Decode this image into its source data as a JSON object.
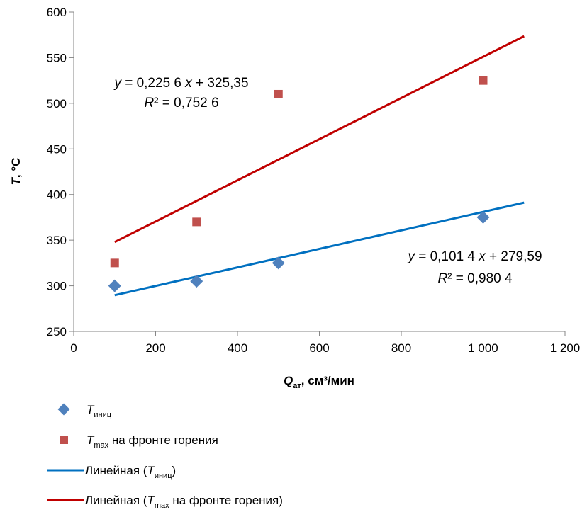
{
  "chart_data": {
    "type": "scatter",
    "xlabel": {
      "main": "Q",
      "sub": "ат",
      "rest": ", см³/мин"
    },
    "ylabel": {
      "main": "T",
      "rest": ", °C"
    },
    "xlim": [
      0,
      1200
    ],
    "ylim": [
      250,
      600
    ],
    "xticks": [
      0,
      200,
      400,
      600,
      800,
      1000,
      1200
    ],
    "xtick_labels": [
      "0",
      "200",
      "400",
      "600",
      "800",
      "1 000",
      "1 200"
    ],
    "yticks": [
      250,
      300,
      350,
      400,
      450,
      500,
      550,
      600
    ],
    "ytick_labels": [
      "250",
      "300",
      "350",
      "400",
      "450",
      "500",
      "550",
      "600"
    ],
    "grid": false,
    "legend_position": "bottom",
    "series": [
      {
        "key": "tinit",
        "marker": "diamond",
        "color": "#4f81bd",
        "x": [
          100,
          300,
          500,
          1000
        ],
        "y": [
          300,
          305,
          325,
          375
        ],
        "legend": {
          "main": "T",
          "sub": "иниц",
          "rest": ""
        }
      },
      {
        "key": "tmax",
        "marker": "square",
        "color": "#c0504d",
        "x": [
          100,
          300,
          500,
          1000
        ],
        "y": [
          325,
          370,
          510,
          525
        ],
        "legend": {
          "main": "T",
          "sub": "max",
          "rest": " на фронте горения"
        }
      }
    ],
    "trendlines": [
      {
        "key": "trend-tinit",
        "color": "#0070c0",
        "slope": 0.1014,
        "intercept": 279.59,
        "x_range": [
          100,
          1100
        ],
        "equation": {
          "y": "y",
          "eq": " = 0,101 4 ",
          "x": "x",
          "rest": " + 279,59"
        },
        "r2": {
          "r": "R",
          "rest": "² = 0,980 4"
        },
        "legend": {
          "prefix": "Линейная (",
          "main": "T",
          "sub": "иниц",
          "rest": ")"
        }
      },
      {
        "key": "trend-tmax",
        "color": "#c00000",
        "slope": 0.2256,
        "intercept": 325.35,
        "x_range": [
          100,
          1100
        ],
        "equation": {
          "y": "y",
          "eq": " = 0,225 6 ",
          "x": "x",
          "rest": " + 325,35"
        },
        "r2": {
          "r": "R",
          "rest": "² = 0,752 6"
        },
        "legend": {
          "prefix": "Линейная (",
          "main": "T",
          "sub": "max",
          "rest": " на фронте горения)"
        }
      }
    ]
  }
}
